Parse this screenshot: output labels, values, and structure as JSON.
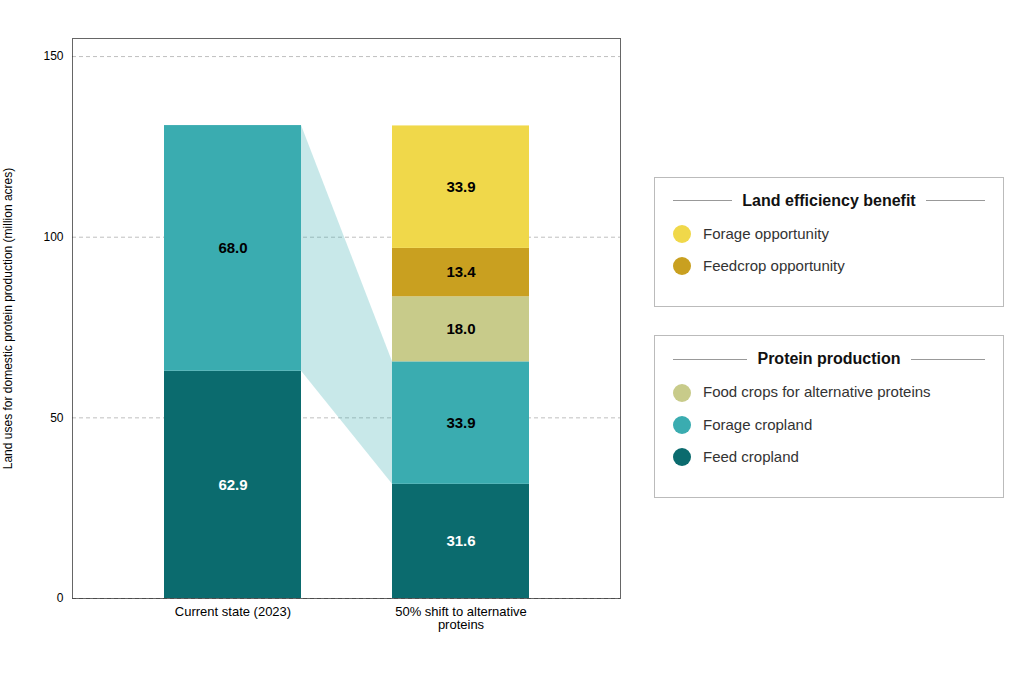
{
  "chart_data": {
    "type": "bar",
    "stacked": true,
    "data_labels": true,
    "grid": true,
    "categories": [
      "Current state (2023)",
      "50% shift to alternative proteins"
    ],
    "ylabel": "Land uses for domestic protein production (million acres)",
    "ylim": [
      0,
      155
    ],
    "yticks": [
      0,
      50,
      100,
      150
    ],
    "series": [
      {
        "name": "Feed cropland",
        "color": "#0b6b6e",
        "values": [
          62.9,
          31.6
        ],
        "value_labels": [
          "62.9",
          "31.6"
        ]
      },
      {
        "name": "Forage cropland",
        "color": "#3aacb0",
        "values": [
          68.0,
          33.9
        ],
        "value_labels": [
          "68.0",
          "33.9"
        ]
      },
      {
        "name": "Food crops for alternative proteins",
        "color": "#c8cb8a",
        "values": [
          null,
          18.0
        ],
        "value_labels": [
          null,
          "18.0"
        ]
      },
      {
        "name": "Feedcrop opportunity",
        "color": "#c9a020",
        "values": [
          null,
          13.4
        ],
        "value_labels": [
          null,
          "13.4"
        ]
      },
      {
        "name": "Forage opportunity",
        "color": "#f0d84a",
        "values": [
          null,
          33.9
        ],
        "value_labels": [
          null,
          "33.9"
        ]
      }
    ],
    "legend_groups": [
      {
        "title": "Land efficiency benefit",
        "series": [
          "Forage opportunity",
          "Feedcrop opportunity"
        ]
      },
      {
        "title": "Protein production",
        "series": [
          "Food crops for alternative proteins",
          "Forage cropland",
          "Feed cropland"
        ]
      }
    ]
  }
}
